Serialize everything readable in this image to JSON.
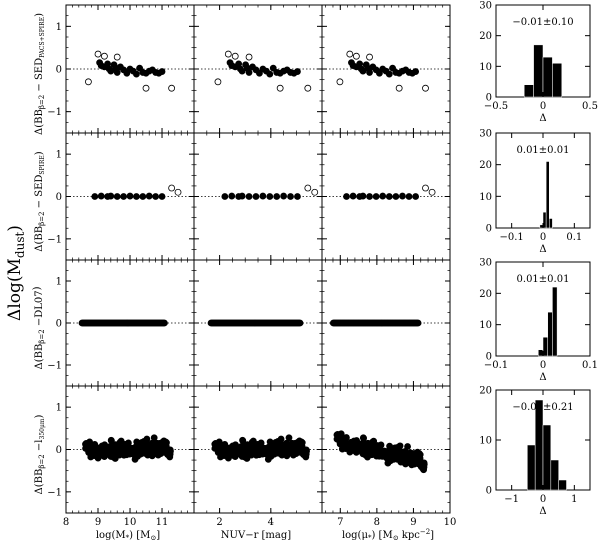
{
  "figure": {
    "ylabel_main": "Δlog(M",
    "ylabel_main_sub": "dust",
    "ylabel_main_close": ")",
    "xlabels": [
      "log(M",
      "NUV−r [mag]",
      "log(μ"
    ],
    "xlabel_parts": {
      "mass_sub": "*",
      "mass_unit": ") [M",
      "mass_unit_sub": "⊙",
      "mass_close": "]",
      "mu_sub": "*",
      "mu_unit": ") [M",
      "mu_unit_sub": "⊙",
      "mu_unit2": " kpc",
      "mu_exp": "−2",
      "mu_close": "]"
    },
    "row_labels": [
      {
        "main": "Δ(BB",
        "sub": "β=2",
        "rest": " − SED",
        "sub2": "PACS+SPIRE",
        "close": ")"
      },
      {
        "main": "Δ(BB",
        "sub": "β=2",
        "rest": " − SED",
        "sub2": "SPIRE",
        "close": ")"
      },
      {
        "main": "Δ(BB",
        "sub": "β=2",
        "rest": " −DL07",
        "sub2": "",
        "close": ")"
      },
      {
        "main": "Δ(BB",
        "sub": "β=2",
        "rest": " −l",
        "sub2": "350μm",
        "close": ")"
      }
    ],
    "hist_xlabel": "Δ"
  },
  "chart_data": {
    "type": "scatter",
    "grid": false,
    "columns": [
      {
        "key": "mass",
        "xlim": [
          8,
          11.999
        ],
        "xticks": [
          8,
          9,
          10,
          11
        ]
      },
      {
        "key": "nuvr",
        "xlim": [
          1,
          5.999
        ],
        "xticks": [
          2,
          4
        ]
      },
      {
        "key": "mu",
        "xlim": [
          6.5,
          10
        ],
        "xticks": [
          7,
          8,
          9,
          10
        ]
      }
    ],
    "rows": [
      {
        "ylim": [
          -1.5,
          1.5
        ],
        "yticks": [
          -1,
          0,
          1
        ],
        "zero_line": true,
        "scatter": {
          "filled": [
            [
              9.05,
              0.15
            ],
            [
              9.1,
              0.08
            ],
            [
              9.2,
              0.05
            ],
            [
              9.3,
              0.12
            ],
            [
              9.35,
              0.0
            ],
            [
              9.4,
              -0.05
            ],
            [
              9.5,
              0.1
            ],
            [
              9.55,
              0.02
            ],
            [
              9.6,
              -0.08
            ],
            [
              9.7,
              0.05
            ],
            [
              9.8,
              -0.02
            ],
            [
              9.9,
              -0.1
            ],
            [
              10.0,
              0.0
            ],
            [
              10.1,
              -0.05
            ],
            [
              10.2,
              -0.12
            ],
            [
              10.3,
              0.02
            ],
            [
              10.4,
              -0.08
            ],
            [
              10.5,
              -0.1
            ],
            [
              10.6,
              -0.05
            ],
            [
              10.7,
              -0.02
            ],
            [
              10.8,
              -0.08
            ],
            [
              10.9,
              -0.1
            ],
            [
              11.0,
              -0.06
            ]
          ],
          "open": [
            [
              8.7,
              -0.3
            ],
            [
              9.0,
              0.35
            ],
            [
              9.2,
              0.3
            ],
            [
              9.6,
              0.28
            ],
            [
              10.5,
              -0.45
            ],
            [
              11.3,
              -0.45
            ]
          ]
        },
        "hist": {
          "label": "−0.01±0.10",
          "xlim": [
            -0.5,
            0.5
          ],
          "xticks": [
            -0.5,
            0,
            0.5
          ],
          "ylim": [
            0,
            30
          ],
          "yticks": [
            0,
            10,
            20,
            30
          ],
          "bins": [
            -0.2,
            -0.1,
            0.0,
            0.1,
            0.2
          ],
          "counts": [
            4,
            17,
            13,
            11
          ]
        }
      },
      {
        "ylim": [
          -1.5,
          1.5
        ],
        "yticks": [
          -1,
          0,
          1
        ],
        "zero_line": true,
        "scatter": {
          "filled": [
            [
              8.9,
              0.0
            ],
            [
              9.1,
              0.01
            ],
            [
              9.3,
              0.0
            ],
            [
              9.4,
              0.01
            ],
            [
              9.6,
              0.0
            ],
            [
              9.8,
              0.0
            ],
            [
              10.0,
              0.01
            ],
            [
              10.2,
              0.0
            ],
            [
              10.4,
              0.0
            ],
            [
              10.6,
              0.01
            ],
            [
              10.8,
              0.0
            ],
            [
              11.0,
              0.0
            ]
          ],
          "open": [
            [
              11.3,
              0.2
            ],
            [
              11.5,
              0.1
            ]
          ]
        },
        "hist": {
          "label": "0.01±0.01",
          "xlim": [
            -0.15,
            0.15
          ],
          "xticks": [
            -0.1,
            0,
            0.1
          ],
          "ylim": [
            0,
            30
          ],
          "yticks": [
            0,
            10,
            20,
            30
          ],
          "bins": [
            -0.01,
            0.0,
            0.01,
            0.02,
            0.03
          ],
          "counts": [
            1,
            5,
            21,
            3
          ]
        }
      },
      {
        "ylim": [
          -1.5,
          1.5
        ],
        "yticks": [
          -1,
          0,
          1
        ],
        "zero_line": true,
        "scatter": {
          "filled_band": [
            [
              8.5,
              11.1,
              0.0
            ]
          ],
          "open": []
        },
        "hist": {
          "label": "0.01±0.01",
          "xlim": [
            -0.1,
            0.1
          ],
          "xticks": [
            -0.1,
            0,
            0.1
          ],
          "ylim": [
            0,
            30
          ],
          "yticks": [
            0,
            10,
            20,
            30
          ],
          "bins": [
            -0.01,
            0.0,
            0.01,
            0.02,
            0.03
          ],
          "counts": [
            2,
            6,
            14,
            22
          ]
        }
      },
      {
        "ylim": [
          -1.5,
          1.5
        ],
        "yticks": [
          -1,
          0,
          1
        ],
        "zero_line": true,
        "scatter": {
          "filled_cloud": true,
          "open": []
        },
        "hist": {
          "label": "−0.01±0.21",
          "xlim": [
            -1.5,
            1.5
          ],
          "xticks": [
            -1,
            0,
            1
          ],
          "ylim": [
            0,
            20
          ],
          "yticks": [
            0,
            10,
            20
          ],
          "bins": [
            -0.5,
            -0.25,
            0.0,
            0.25,
            0.5,
            0.75
          ],
          "counts": [
            9,
            18,
            13,
            6,
            2
          ]
        }
      }
    ]
  }
}
